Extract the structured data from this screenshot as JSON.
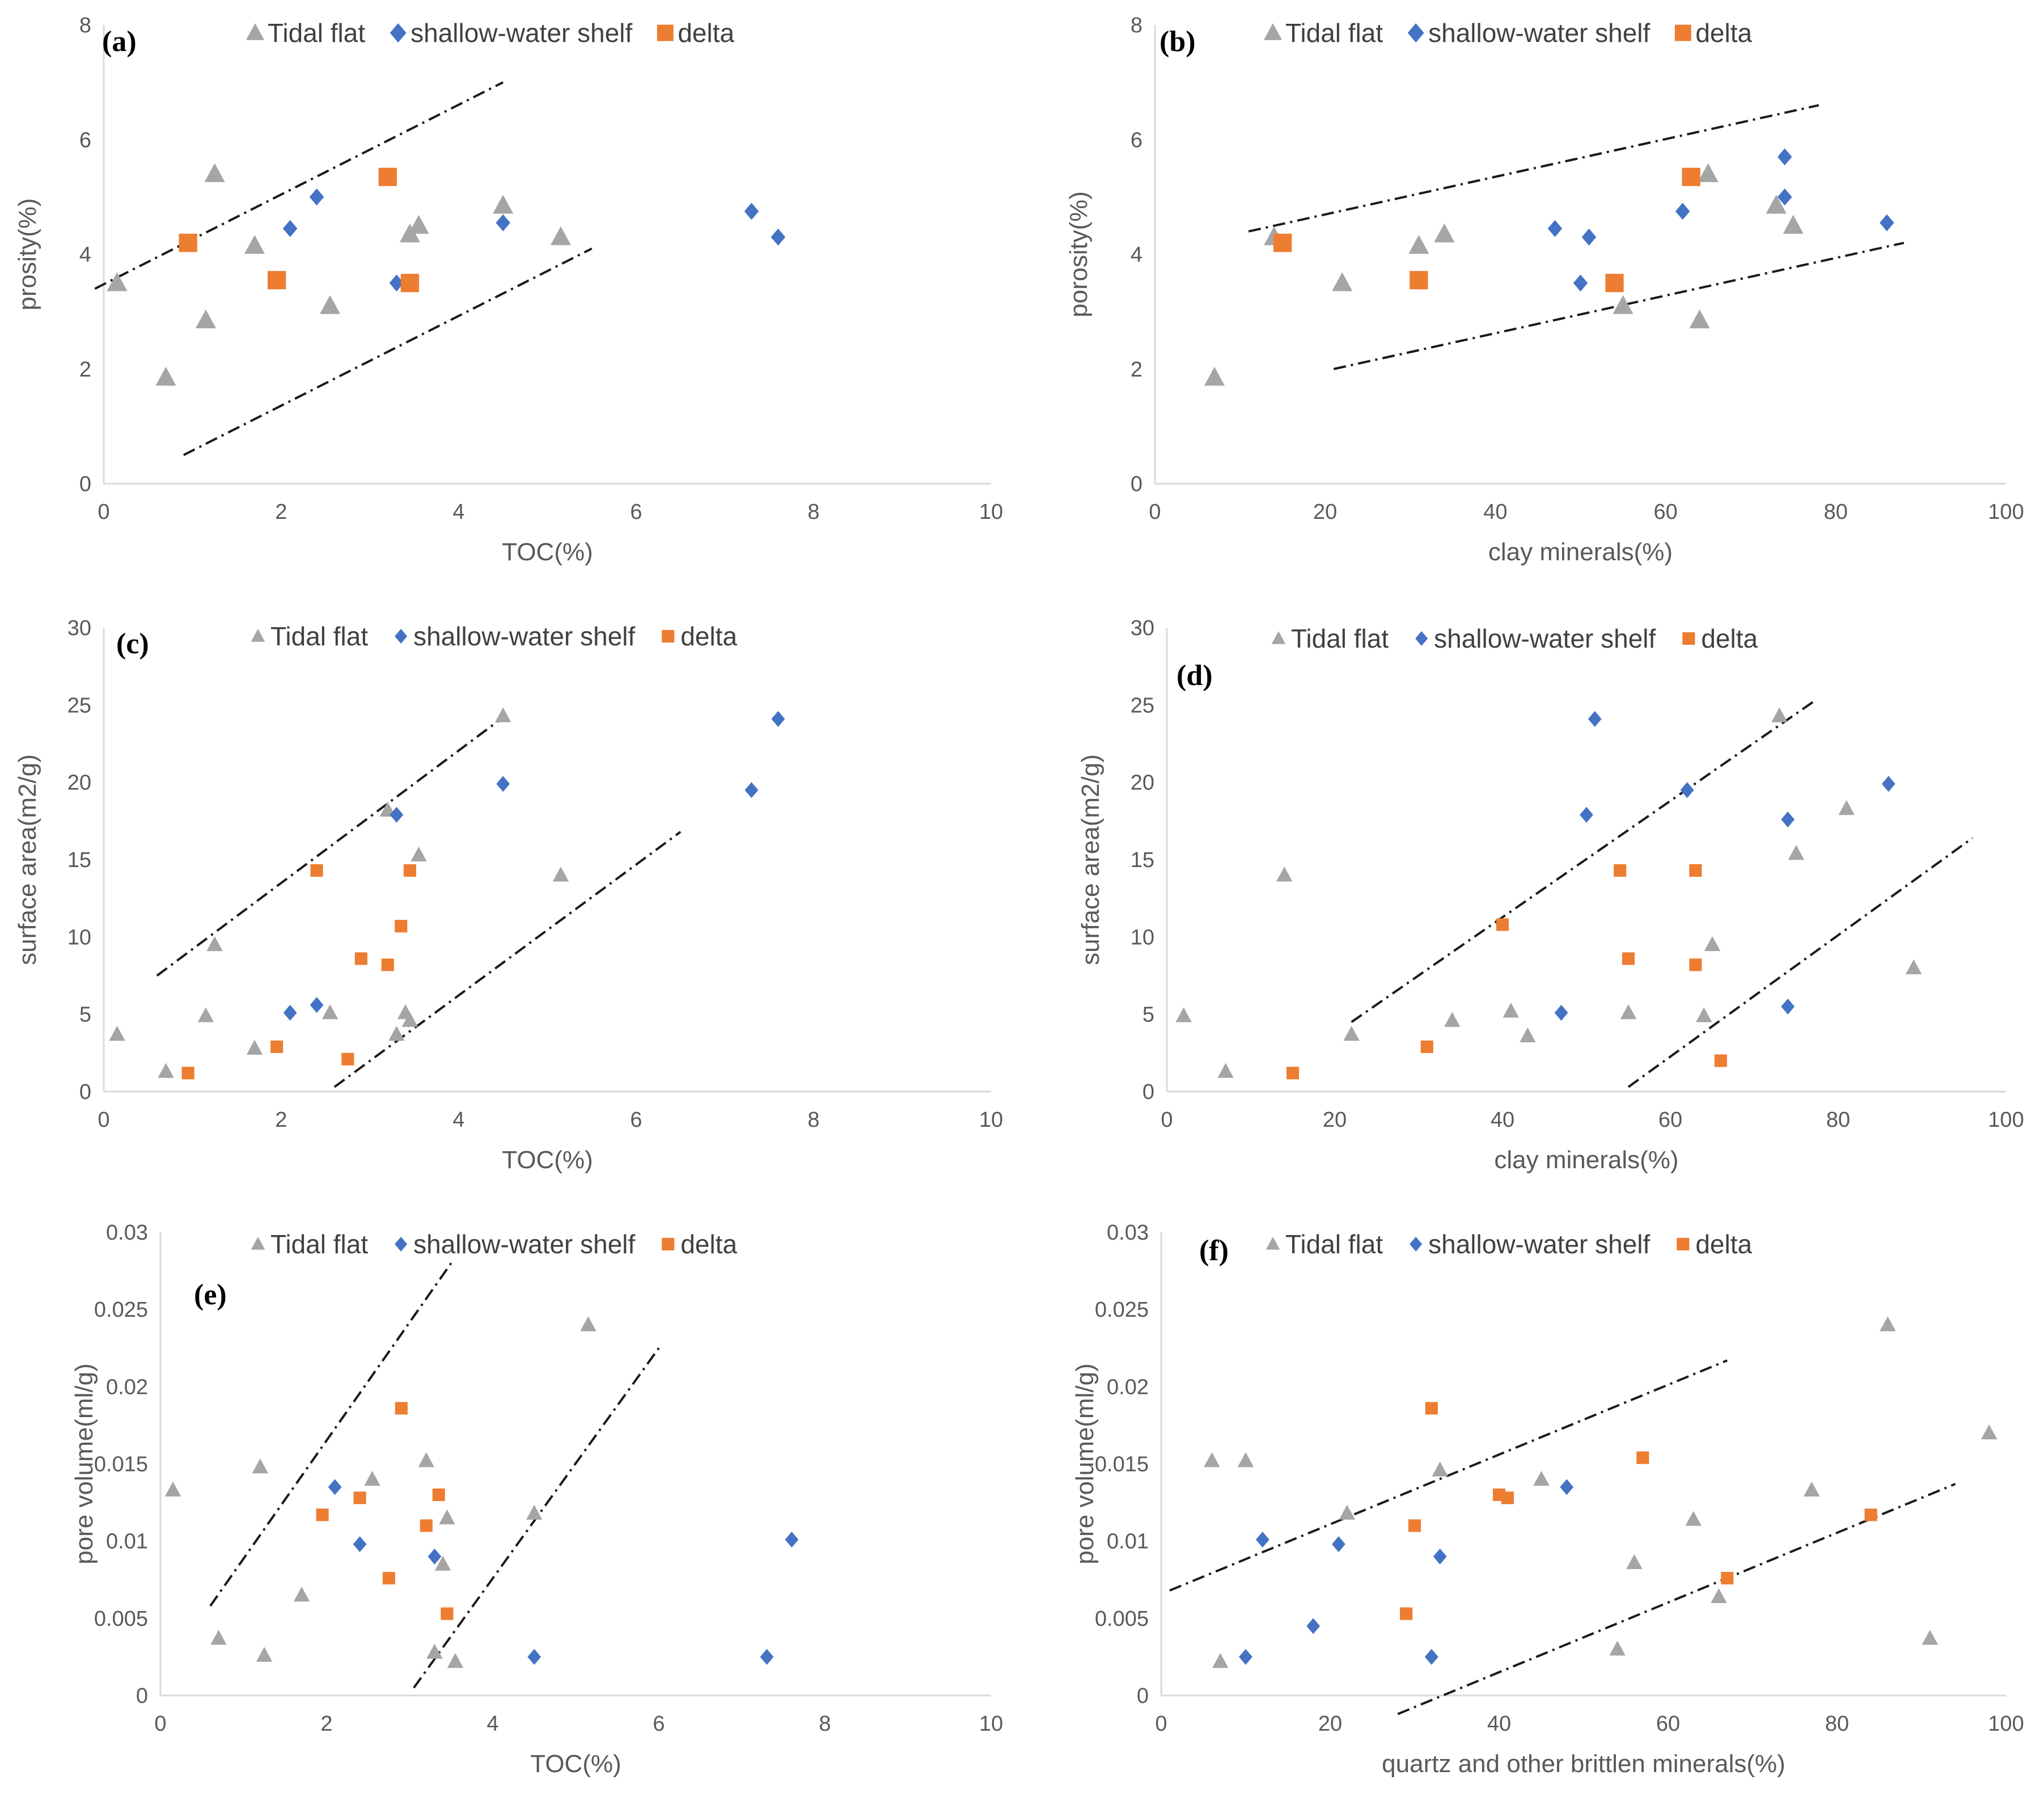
{
  "colors": {
    "tidal_flat": "#a5a5a5",
    "shallow_water_shelf": "#4472c4",
    "delta": "#ed7d31",
    "axis": "#d9d9d9",
    "trend": "#1a1a1a"
  },
  "legend": {
    "tidal_flat": "Tidal flat",
    "shallow_water_shelf": "shallow-water shelf",
    "delta": "delta"
  },
  "chart_data": [
    {
      "type": "scatter",
      "panel": "(a)",
      "xlabel": "TOC(%)",
      "ylabel": "prosity(%)",
      "xlim": [
        0,
        10
      ],
      "ylim": [
        0,
        8
      ],
      "xticks": [
        0,
        2,
        4,
        6,
        8,
        10
      ],
      "yticks": [
        0,
        2,
        4,
        6,
        8
      ],
      "big_markers": true,
      "series": [
        {
          "name": "Tidal flat",
          "points": [
            [
              0.15,
              3.5
            ],
            [
              0.7,
              1.85
            ],
            [
              1.15,
              2.85
            ],
            [
              1.25,
              5.4
            ],
            [
              1.7,
              4.15
            ],
            [
              2.55,
              3.1
            ],
            [
              3.45,
              4.35
            ],
            [
              3.55,
              4.5
            ],
            [
              4.5,
              4.85
            ],
            [
              5.15,
              4.3
            ]
          ]
        },
        {
          "name": "shallow-water shelf",
          "points": [
            [
              2.1,
              4.45
            ],
            [
              2.4,
              5.0
            ],
            [
              3.3,
              3.5
            ],
            [
              4.5,
              4.55
            ],
            [
              7.3,
              4.75
            ],
            [
              7.6,
              4.3
            ]
          ]
        },
        {
          "name": "delta",
          "points": [
            [
              0.95,
              4.2
            ],
            [
              1.95,
              3.55
            ],
            [
              3.2,
              5.35
            ],
            [
              3.45,
              3.5
            ]
          ]
        }
      ],
      "trendlines": [
        [
          [
            -0.1,
            3.4
          ],
          [
            4.5,
            7.0
          ]
        ],
        [
          [
            0.9,
            0.5
          ],
          [
            5.5,
            4.1
          ]
        ]
      ]
    },
    {
      "type": "scatter",
      "panel": "(b)",
      "xlabel": "clay minerals(%)",
      "ylabel": "porosity(%)",
      "xlim": [
        0,
        100
      ],
      "ylim": [
        0,
        8
      ],
      "xticks": [
        0,
        20,
        40,
        60,
        80,
        100
      ],
      "yticks": [
        0,
        2,
        4,
        6,
        8
      ],
      "big_markers": true,
      "series": [
        {
          "name": "Tidal flat",
          "points": [
            [
              7,
              1.85
            ],
            [
              14,
              4.3
            ],
            [
              22,
              3.5
            ],
            [
              31,
              4.15
            ],
            [
              34,
              4.35
            ],
            [
              55,
              3.1
            ],
            [
              64,
              2.85
            ],
            [
              65,
              5.4
            ],
            [
              73,
              4.85
            ],
            [
              75,
              4.5
            ]
          ]
        },
        {
          "name": "shallow-water shelf",
          "points": [
            [
              47,
              4.45
            ],
            [
              50,
              3.5
            ],
            [
              51,
              4.3
            ],
            [
              62,
              4.75
            ],
            [
              74,
              5.7
            ],
            [
              74,
              5.0
            ],
            [
              86,
              4.55
            ]
          ]
        },
        {
          "name": "delta",
          "points": [
            [
              15,
              4.2
            ],
            [
              31,
              3.55
            ],
            [
              54,
              3.5
            ],
            [
              63,
              5.35
            ]
          ]
        }
      ],
      "trendlines": [
        [
          [
            11,
            4.4
          ],
          [
            78,
            6.6
          ]
        ],
        [
          [
            21,
            2.0
          ],
          [
            88,
            4.2
          ]
        ]
      ]
    },
    {
      "type": "scatter",
      "panel": "(c)",
      "xlabel": "TOC(%)",
      "ylabel": "surface area(m2/g)",
      "xlim": [
        0,
        10
      ],
      "ylim": [
        0,
        30
      ],
      "xticks": [
        0,
        2,
        4,
        6,
        8,
        10
      ],
      "yticks": [
        0,
        5,
        10,
        15,
        20,
        25,
        30
      ],
      "big_markers": false,
      "series": [
        {
          "name": "Tidal flat",
          "points": [
            [
              0.15,
              3.7
            ],
            [
              0.7,
              1.3
            ],
            [
              1.15,
              4.9
            ],
            [
              1.25,
              9.5
            ],
            [
              1.7,
              2.8
            ],
            [
              2.55,
              5.1
            ],
            [
              3.2,
              18.2
            ],
            [
              3.3,
              3.7
            ],
            [
              3.4,
              5.1
            ],
            [
              3.45,
              4.6
            ],
            [
              3.55,
              15.3
            ],
            [
              4.5,
              24.3
            ],
            [
              5.15,
              14.0
            ]
          ]
        },
        {
          "name": "shallow-water shelf",
          "points": [
            [
              2.1,
              5.1
            ],
            [
              2.4,
              5.6
            ],
            [
              3.3,
              17.9
            ],
            [
              4.5,
              19.9
            ],
            [
              7.3,
              19.5
            ],
            [
              7.6,
              24.1
            ]
          ]
        },
        {
          "name": "delta",
          "points": [
            [
              0.95,
              1.2
            ],
            [
              1.95,
              2.9
            ],
            [
              2.4,
              14.3
            ],
            [
              2.75,
              2.1
            ],
            [
              2.9,
              8.6
            ],
            [
              3.2,
              8.2
            ],
            [
              3.35,
              10.7
            ],
            [
              3.45,
              14.3
            ]
          ]
        }
      ],
      "trendlines": [
        [
          [
            0.6,
            7.5
          ],
          [
            4.5,
            24.2
          ]
        ],
        [
          [
            2.6,
            0.3
          ],
          [
            6.5,
            16.8
          ]
        ]
      ]
    },
    {
      "type": "scatter",
      "panel": "(d)",
      "xlabel": "clay minerals(%)",
      "ylabel": "surface area(m2/g)",
      "xlim": [
        0,
        100
      ],
      "ylim": [
        0,
        30
      ],
      "xticks": [
        0,
        20,
        40,
        60,
        80,
        100
      ],
      "yticks": [
        0,
        5,
        10,
        15,
        20,
        25,
        30
      ],
      "big_markers": false,
      "series": [
        {
          "name": "Tidal flat",
          "points": [
            [
              2,
              4.9
            ],
            [
              7,
              1.3
            ],
            [
              14,
              14.0
            ],
            [
              22,
              3.7
            ],
            [
              34,
              4.6
            ],
            [
              41,
              5.2
            ],
            [
              43,
              3.6
            ],
            [
              55,
              5.1
            ],
            [
              64,
              4.9
            ],
            [
              65,
              9.5
            ],
            [
              73,
              24.3
            ],
            [
              75,
              15.4
            ],
            [
              81,
              18.3
            ],
            [
              89,
              8.0
            ]
          ]
        },
        {
          "name": "shallow-water shelf",
          "points": [
            [
              47,
              5.1
            ],
            [
              50,
              17.9
            ],
            [
              51,
              24.1
            ],
            [
              62,
              19.5
            ],
            [
              74,
              17.6
            ],
            [
              74,
              5.5
            ],
            [
              86,
              19.9
            ]
          ]
        },
        {
          "name": "delta",
          "points": [
            [
              15,
              1.2
            ],
            [
              31,
              2.9
            ],
            [
              40,
              10.8
            ],
            [
              54,
              14.3
            ],
            [
              55,
              8.6
            ],
            [
              63,
              8.2
            ],
            [
              63,
              14.3
            ],
            [
              66,
              2.0
            ]
          ]
        }
      ],
      "trendlines": [
        [
          [
            22,
            4.5
          ],
          [
            77,
            25.2
          ]
        ],
        [
          [
            55,
            0.3
          ],
          [
            96,
            16.4
          ]
        ]
      ]
    },
    {
      "type": "scatter",
      "panel": "(e)",
      "xlabel": "TOC(%)",
      "ylabel": "pore volume(ml/g)",
      "xlim": [
        0,
        10
      ],
      "ylim": [
        0,
        0.03
      ],
      "xticks": [
        0,
        2,
        4,
        6,
        8,
        10
      ],
      "yticks": [
        0,
        0.005,
        0.01,
        0.015,
        0.02,
        0.025,
        0.03
      ],
      "big_markers": false,
      "series": [
        {
          "name": "Tidal flat",
          "points": [
            [
              0.15,
              0.0133
            ],
            [
              0.7,
              0.0037
            ],
            [
              1.2,
              0.0148
            ],
            [
              1.25,
              0.0026
            ],
            [
              1.7,
              0.0065
            ],
            [
              2.55,
              0.014
            ],
            [
              3.2,
              0.0152
            ],
            [
              3.3,
              0.0028
            ],
            [
              3.4,
              0.0085
            ],
            [
              3.45,
              0.0115
            ],
            [
              3.55,
              0.0022
            ],
            [
              4.5,
              0.0118
            ],
            [
              5.15,
              0.024
            ]
          ]
        },
        {
          "name": "shallow-water shelf",
          "points": [
            [
              2.1,
              0.0135
            ],
            [
              2.4,
              0.0098
            ],
            [
              3.3,
              0.009
            ],
            [
              4.5,
              0.0025
            ],
            [
              7.3,
              0.0025
            ],
            [
              7.6,
              0.0101
            ]
          ]
        },
        {
          "name": "delta",
          "points": [
            [
              1.95,
              0.0117
            ],
            [
              2.4,
              0.0128
            ],
            [
              2.75,
              0.0076
            ],
            [
              2.9,
              0.0186
            ],
            [
              3.2,
              0.011
            ],
            [
              3.35,
              0.013
            ],
            [
              3.45,
              0.0053
            ]
          ]
        }
      ],
      "trendlines": [
        [
          [
            0.6,
            0.0058
          ],
          [
            3.5,
            0.028
          ]
        ],
        [
          [
            3.05,
            0.0005
          ],
          [
            6.0,
            0.0225
          ]
        ]
      ]
    },
    {
      "type": "scatter",
      "panel": "(f)",
      "xlabel": "quartz and other brittlen minerals(%)",
      "ylabel": "pore volume(ml/g)",
      "xlim": [
        0,
        100
      ],
      "ylim": [
        0,
        0.03
      ],
      "xticks": [
        0,
        20,
        40,
        60,
        80,
        100
      ],
      "yticks": [
        0,
        0.005,
        0.01,
        0.015,
        0.02,
        0.025,
        0.03
      ],
      "big_markers": false,
      "series": [
        {
          "name": "Tidal flat",
          "points": [
            [
              6,
              0.0152
            ],
            [
              7,
              0.0022
            ],
            [
              10,
              0.0152
            ],
            [
              22,
              0.0118
            ],
            [
              33,
              0.0146
            ],
            [
              45,
              0.014
            ],
            [
              54,
              0.003
            ],
            [
              56,
              0.0086
            ],
            [
              63,
              0.0114
            ],
            [
              66,
              0.0064
            ],
            [
              77,
              0.0133
            ],
            [
              86,
              0.024
            ],
            [
              91,
              0.0037
            ],
            [
              98,
              0.017
            ]
          ]
        },
        {
          "name": "shallow-water shelf",
          "points": [
            [
              10,
              0.0025
            ],
            [
              12,
              0.0101
            ],
            [
              18,
              0.0045
            ],
            [
              21,
              0.0098
            ],
            [
              32,
              0.0025
            ],
            [
              33,
              0.009
            ],
            [
              48,
              0.0135
            ]
          ]
        },
        {
          "name": "delta",
          "points": [
            [
              29,
              0.0053
            ],
            [
              30,
              0.011
            ],
            [
              32,
              0.0186
            ],
            [
              40,
              0.013
            ],
            [
              41,
              0.0128
            ],
            [
              57,
              0.0154
            ],
            [
              67,
              0.0076
            ],
            [
              84,
              0.0117
            ]
          ]
        }
      ],
      "trendlines": [
        [
          [
            1,
            0.0068
          ],
          [
            67,
            0.0217
          ]
        ],
        [
          [
            28,
            -0.0012
          ],
          [
            94,
            0.0137
          ]
        ]
      ]
    }
  ]
}
